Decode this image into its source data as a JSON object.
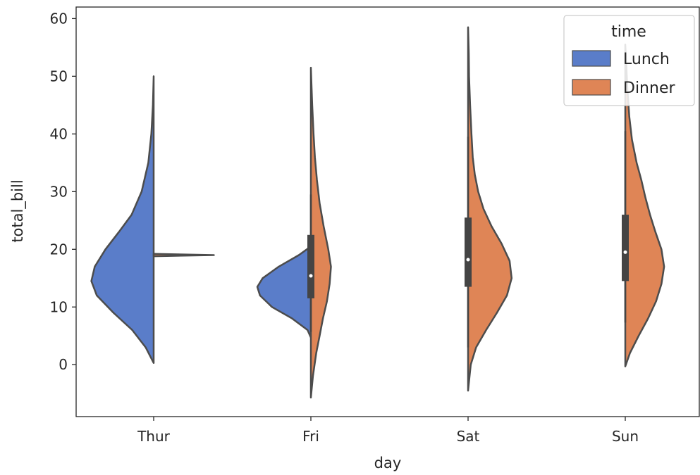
{
  "chart_data": {
    "type": "violin",
    "split": true,
    "categories": [
      "Thur",
      "Fri",
      "Sat",
      "Sun"
    ],
    "xlabel": "day",
    "ylabel": "total_bill",
    "ylim": [
      -9,
      62
    ],
    "yticks": [
      0,
      10,
      20,
      30,
      40,
      50,
      60
    ],
    "grid": false,
    "legend": {
      "title": "time",
      "placement": "top-right"
    },
    "colors": {
      "outline": "#4c4c4c",
      "box": "#444444",
      "median": "#ffffff"
    },
    "series": [
      {
        "name": "Lunch",
        "color": "#5a7dc9",
        "violins": [
          {
            "category": "Thur",
            "profile": [
              [
                0.3,
                0
              ],
              [
                3,
                0.12
              ],
              [
                6,
                0.32
              ],
              [
                9,
                0.6
              ],
              [
                12,
                0.85
              ],
              [
                14.5,
                0.93
              ],
              [
                17,
                0.88
              ],
              [
                20,
                0.72
              ],
              [
                23,
                0.52
              ],
              [
                26,
                0.33
              ],
              [
                30,
                0.18
              ],
              [
                35,
                0.08
              ],
              [
                40,
                0.035
              ],
              [
                45,
                0.012
              ],
              [
                50,
                0
              ]
            ],
            "box": null,
            "median": null
          },
          {
            "category": "Fri",
            "profile": [
              [
                4.7,
                0
              ],
              [
                6,
                0.05
              ],
              [
                8,
                0.28
              ],
              [
                10,
                0.58
              ],
              [
                12,
                0.76
              ],
              [
                13.5,
                0.8
              ],
              [
                15,
                0.72
              ],
              [
                17,
                0.48
              ],
              [
                19,
                0.18
              ],
              [
                20.5,
                0
              ]
            ],
            "box": null,
            "median": null
          },
          {
            "category": "Sat",
            "profile": [],
            "box": null,
            "median": null
          },
          {
            "category": "Sun",
            "profile": [],
            "box": null,
            "median": null
          }
        ]
      },
      {
        "name": "Dinner",
        "color": "#df8556",
        "violins": [
          {
            "category": "Thur",
            "profile": [
              [
                18.8,
                0
              ],
              [
                19,
                0.9
              ],
              [
                19.2,
                0
              ]
            ],
            "box": null,
            "median": null
          },
          {
            "category": "Fri",
            "profile": [
              [
                -5.7,
                0
              ],
              [
                -2,
                0.03
              ],
              [
                2,
                0.08
              ],
              [
                5,
                0.13
              ],
              [
                8,
                0.18
              ],
              [
                11,
                0.24
              ],
              [
                14,
                0.28
              ],
              [
                17,
                0.3
              ],
              [
                20,
                0.26
              ],
              [
                24,
                0.19
              ],
              [
                28,
                0.13
              ],
              [
                32,
                0.09
              ],
              [
                36,
                0.06
              ],
              [
                40,
                0.04
              ],
              [
                45,
                0.02
              ],
              [
                51.5,
                0
              ]
            ],
            "box": [
              11.5,
              22.5
            ],
            "whisker": [
              5.7,
              29.5
            ],
            "median": 15.4
          },
          {
            "category": "Sat",
            "profile": [
              [
                -4.5,
                0
              ],
              [
                0,
                0.04
              ],
              [
                3,
                0.12
              ],
              [
                6,
                0.27
              ],
              [
                9,
                0.43
              ],
              [
                12,
                0.58
              ],
              [
                15,
                0.65
              ],
              [
                18,
                0.62
              ],
              [
                21,
                0.5
              ],
              [
                24,
                0.35
              ],
              [
                27,
                0.23
              ],
              [
                30,
                0.15
              ],
              [
                33,
                0.1
              ],
              [
                36,
                0.07
              ],
              [
                40,
                0.05
              ],
              [
                45,
                0.03
              ],
              [
                50,
                0.015
              ],
              [
                54,
                0.01
              ],
              [
                58.5,
                0
              ]
            ],
            "box": [
              13.5,
              25.5
            ],
            "whisker": [
              3,
              39.5
            ],
            "median": 18.2
          },
          {
            "category": "Sun",
            "profile": [
              [
                -0.3,
                0
              ],
              [
                2,
                0.07
              ],
              [
                5,
                0.2
              ],
              [
                8,
                0.34
              ],
              [
                11,
                0.46
              ],
              [
                14,
                0.54
              ],
              [
                17,
                0.58
              ],
              [
                20,
                0.54
              ],
              [
                23,
                0.45
              ],
              [
                26,
                0.37
              ],
              [
                29,
                0.3
              ],
              [
                32,
                0.24
              ],
              [
                35,
                0.17
              ],
              [
                39,
                0.1
              ],
              [
                43,
                0.06
              ],
              [
                48,
                0.03
              ],
              [
                52,
                0.015
              ],
              [
                55.5,
                0
              ]
            ],
            "box": [
              14.5,
              26
            ],
            "whisker": [
              7.3,
              40.5
            ],
            "median": 19.5
          }
        ]
      }
    ]
  }
}
